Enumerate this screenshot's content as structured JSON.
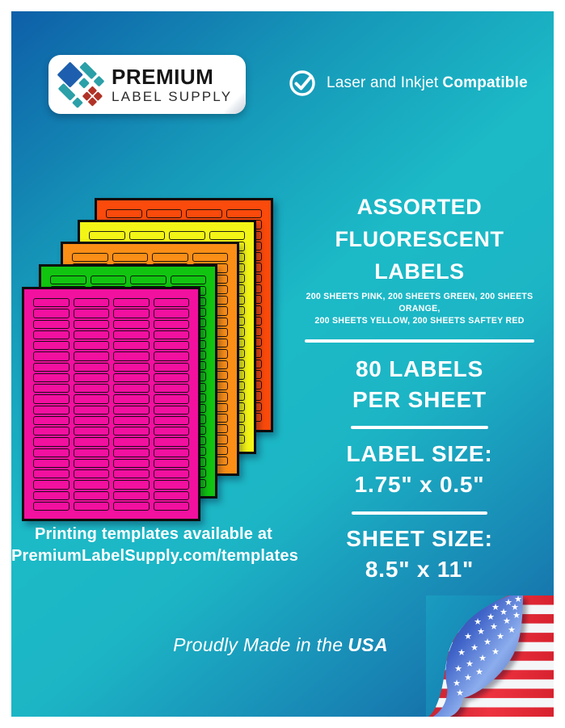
{
  "logo": {
    "brand_line1": "PREMIUM",
    "brand_line2": "LABEL SUPPLY"
  },
  "compatibility": {
    "text_regular": "Laser and Inkjet",
    "text_bold": "Compatible"
  },
  "product_panel": {
    "title_line1": "ASSORTED",
    "title_line2": "FLUORESCENT LABELS",
    "subtitle_line1": "200 SHEETS PINK, 200 SHEETS GREEN, 200 SHEETS ORANGE,",
    "subtitle_line2": "200 SHEETS YELLOW, 200 SHEETS SAFTEY RED",
    "count_line1": "80 LABELS",
    "count_line2": "PER SHEET",
    "label_size_heading": "LABEL SIZE:",
    "label_size_value": "1.75\" x 0.5\"",
    "sheet_size_heading": "SHEET SIZE:",
    "sheet_size_value": "8.5\" x 11\""
  },
  "sheets": {
    "columns": 4,
    "rows": 20,
    "stack": [
      {
        "name": "safety-red",
        "color": "#fa4a0c"
      },
      {
        "name": "yellow",
        "color": "#f3f516"
      },
      {
        "name": "orange",
        "color": "#fb8e16"
      },
      {
        "name": "green",
        "color": "#11c410"
      },
      {
        "name": "pink",
        "color": "#f2109f"
      }
    ]
  },
  "templates_note": {
    "line1": "Printing templates available at",
    "line2": "PremiumLabelSupply.com/templates"
  },
  "footer": {
    "made_in_prefix": "Proudly Made in the",
    "made_in_bold": "USA"
  },
  "colors": {
    "background_teal": "#1cb9c6",
    "background_blue": "#1164ac",
    "flag_red": "#e22f38",
    "flag_white": "#f4f6f8",
    "flag_blue_dark": "#1e3d9e",
    "flag_blue_light": "#7e9fe8",
    "logo_blue": "#1d5fae",
    "logo_teal": "#2ba0a8",
    "logo_red": "#b13227"
  },
  "icons": {
    "logo_mark": "diamond-mosaic-icon",
    "compatibility": "check-circle-icon",
    "corner": "usa-flag-curl-icon"
  }
}
